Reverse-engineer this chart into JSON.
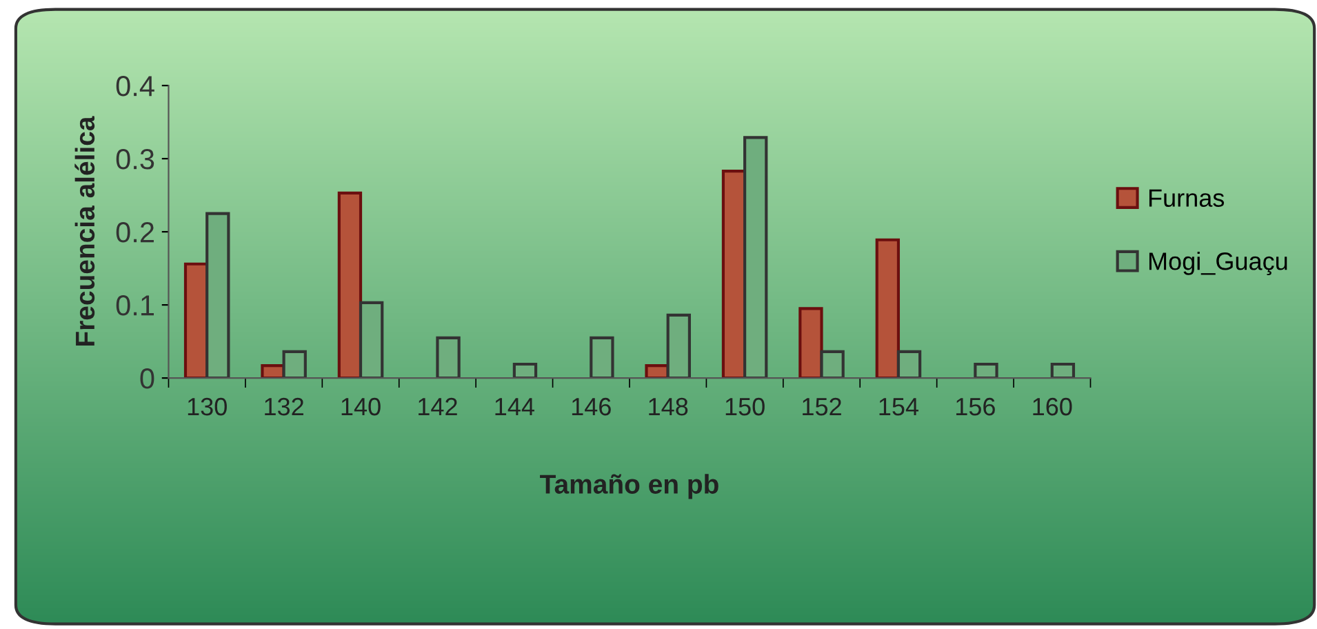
{
  "chart_data": {
    "type": "bar",
    "xlabel": "Tamaño en pb",
    "ylabel": "Frecuencia alélica",
    "categories": [
      "130",
      "132",
      "140",
      "142",
      "144",
      "146",
      "148",
      "150",
      "152",
      "154",
      "156",
      "160"
    ],
    "series": [
      {
        "name": "Furnas",
        "color": "#b5533a",
        "values": [
          0.156,
          0.017,
          0.253,
          null,
          null,
          null,
          0.017,
          0.283,
          0.095,
          0.189,
          null,
          null
        ]
      },
      {
        "name": "Mogi_Guaçu",
        "color": "#6fae7e",
        "values": [
          0.225,
          0.036,
          0.103,
          0.055,
          0.019,
          0.055,
          0.086,
          0.329,
          0.036,
          0.036,
          0.019,
          0.019
        ]
      }
    ],
    "ylim": [
      0,
      0.4
    ],
    "yticks": [
      0,
      0.1,
      0.2,
      0.3,
      0.4
    ],
    "grid": false,
    "legend": "right"
  }
}
